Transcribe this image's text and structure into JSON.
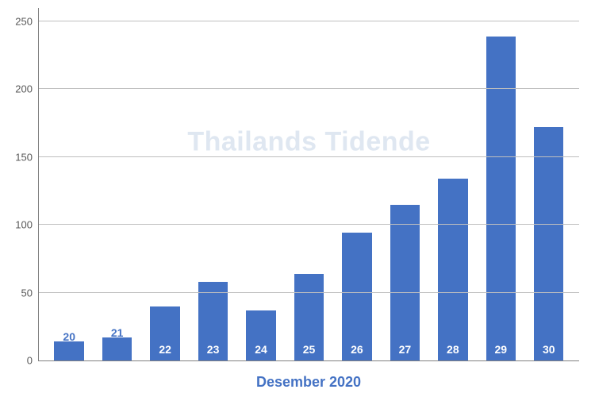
{
  "chart": {
    "type": "bar",
    "background_color": "#ffffff",
    "grid_color": "#bfbfbf",
    "axis_color": "#808080",
    "tick_label_color": "#595959",
    "tick_label_fontsize": 13,
    "bar_color": "#4472c4",
    "bar_label_color_inside": "#ffffff",
    "bar_label_color_outside": "#4472c4",
    "bar_label_fontsize": 14,
    "bar_width": 0.62,
    "ylim": [
      0,
      260
    ],
    "yticks": [
      0,
      50,
      100,
      150,
      200,
      250
    ],
    "categories": [
      "20",
      "21",
      "22",
      "23",
      "24",
      "25",
      "26",
      "27",
      "28",
      "29",
      "30"
    ],
    "values": [
      14,
      17,
      40,
      58,
      37,
      64,
      94,
      115,
      134,
      239,
      172
    ],
    "label_placement_threshold": 25,
    "watermark_text": "Thailands Tidende",
    "watermark_color": "#dfe7f1",
    "watermark_fontsize": 34,
    "x_axis_title": "Desember 2020",
    "x_axis_title_color": "#4472c4",
    "x_axis_title_fontsize": 18
  }
}
